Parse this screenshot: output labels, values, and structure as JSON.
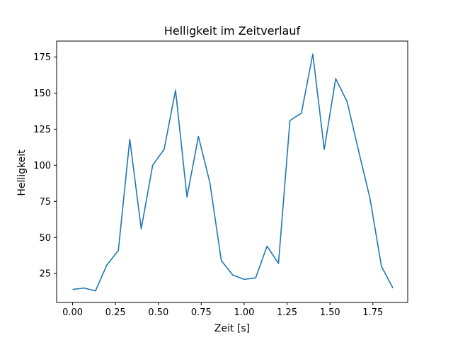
{
  "chart_data": {
    "type": "line",
    "title": "Helligkeit im Zeitverlauf",
    "xlabel": "Zeit [s]",
    "ylabel": "Helligkeit",
    "xlim": [
      -0.093,
      1.953
    ],
    "ylim": [
      5,
      186
    ],
    "x_ticks": [
      0.0,
      0.25,
      0.5,
      0.75,
      1.0,
      1.25,
      1.5,
      1.75
    ],
    "x_tick_labels": [
      "0.00",
      "0.25",
      "0.50",
      "0.75",
      "1.00",
      "1.25",
      "1.50",
      "1.75"
    ],
    "y_ticks": [
      25,
      50,
      75,
      100,
      125,
      150,
      175
    ],
    "y_tick_labels": [
      "25",
      "50",
      "75",
      "100",
      "125",
      "150",
      "175"
    ],
    "grid": false,
    "series": [
      {
        "color": "#1f77b4",
        "x": [
          0.0,
          0.0667,
          0.1333,
          0.2,
          0.2667,
          0.3333,
          0.4,
          0.4667,
          0.5333,
          0.6,
          0.6667,
          0.7333,
          0.8,
          0.8667,
          0.9333,
          1.0,
          1.0667,
          1.1333,
          1.2,
          1.2667,
          1.3333,
          1.4,
          1.4667,
          1.5333,
          1.6,
          1.6667,
          1.7333,
          1.8,
          1.8667
        ],
        "y": [
          14,
          15,
          13,
          31,
          41,
          118,
          56,
          100,
          111,
          152,
          78,
          120,
          88,
          34,
          24,
          21,
          22,
          44,
          32,
          131,
          136,
          177,
          111,
          160,
          144,
          110,
          77,
          30,
          15
        ]
      }
    ]
  }
}
